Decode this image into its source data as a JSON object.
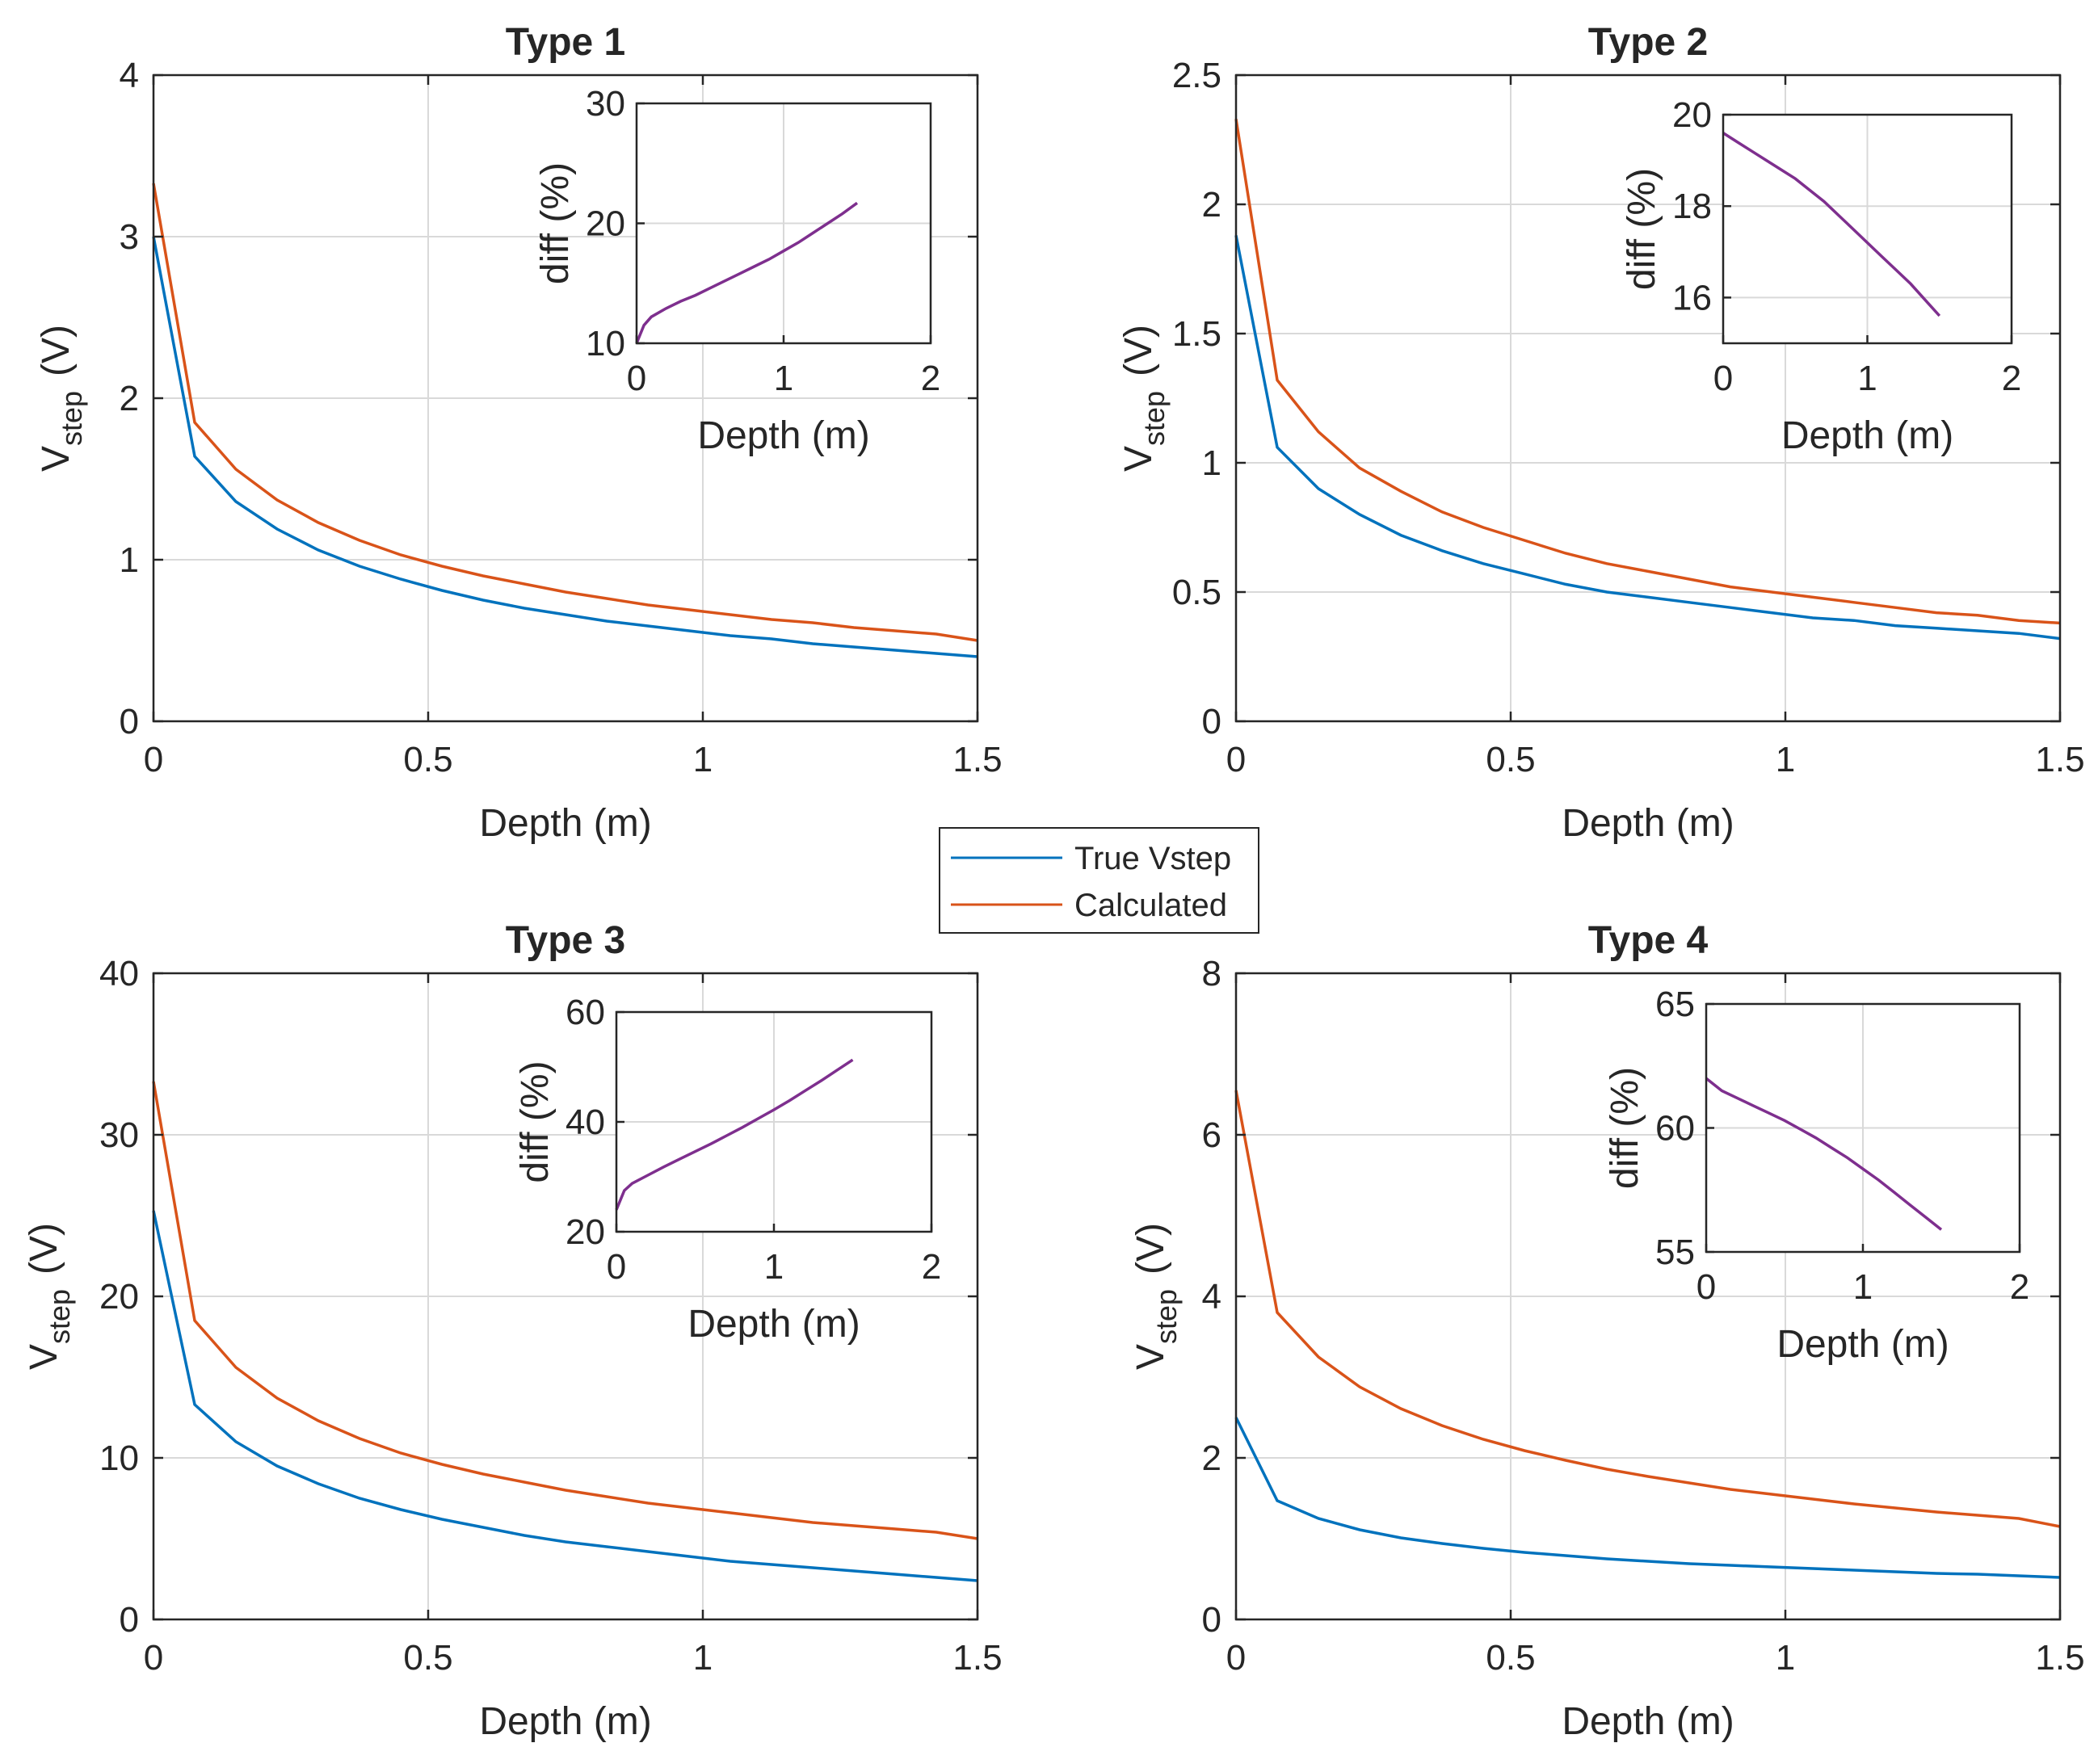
{
  "colors": {
    "true_vstep": "#0072BD",
    "calculated": "#D95319",
    "diff": "#7E2F8E",
    "grid": "#d9d9d9",
    "axis": "#262626"
  },
  "legend": {
    "entries": [
      {
        "label": "True Vstep",
        "color": "#0072BD"
      },
      {
        "label": "Calculated",
        "color": "#D95319"
      }
    ]
  },
  "chart_data": [
    {
      "type": "line",
      "title": "Type 1",
      "xlabel": "Depth  (m)",
      "ylabel_main": "V",
      "ylabel_sub": "step",
      "ylabel_unit": "(V)",
      "xlim": [
        0,
        1.5
      ],
      "ylim": [
        0,
        4
      ],
      "xticks": [
        0,
        0.5,
        1,
        1.5
      ],
      "xtick_labels": [
        "0",
        "0.5",
        "1",
        "1.5"
      ],
      "yticks": [
        0,
        1,
        2,
        3,
        4
      ],
      "ytick_labels": [
        "0",
        "1",
        "2",
        "3",
        "4"
      ],
      "grid": true,
      "x": [
        0,
        0.075,
        0.15,
        0.225,
        0.3,
        0.375,
        0.45,
        0.525,
        0.6,
        0.675,
        0.75,
        0.825,
        0.9,
        0.975,
        1.05,
        1.125,
        1.2,
        1.275,
        1.35,
        1.425,
        1.5
      ],
      "series": [
        {
          "name": "True Vstep",
          "values": [
            3.0,
            1.64,
            1.36,
            1.19,
            1.06,
            0.96,
            0.88,
            0.81,
            0.75,
            0.7,
            0.66,
            0.62,
            0.59,
            0.56,
            0.53,
            0.51,
            0.48,
            0.46,
            0.44,
            0.42,
            0.4
          ]
        },
        {
          "name": "Calculated",
          "values": [
            3.33,
            1.85,
            1.56,
            1.37,
            1.23,
            1.12,
            1.03,
            0.96,
            0.9,
            0.85,
            0.8,
            0.76,
            0.72,
            0.69,
            0.66,
            0.63,
            0.61,
            0.58,
            0.56,
            0.54,
            0.5
          ]
        }
      ],
      "inset": {
        "ylabel": "diff (%)",
        "xlabel": "Depth  (m)",
        "xlim": [
          0,
          2
        ],
        "ylim": [
          10,
          30
        ],
        "xticks": [
          0,
          1,
          2
        ],
        "xtick_labels": [
          "0",
          "1",
          "2"
        ],
        "yticks": [
          10,
          20,
          30
        ],
        "ytick_labels": [
          "10",
          "20",
          "30"
        ],
        "x": [
          0,
          0.05,
          0.1,
          0.2,
          0.3,
          0.4,
          0.5,
          0.6,
          0.7,
          0.8,
          0.9,
          1.0,
          1.1,
          1.2,
          1.3,
          1.4,
          1.5
        ],
        "values": [
          10.0,
          11.5,
          12.2,
          12.9,
          13.5,
          14.0,
          14.6,
          15.2,
          15.8,
          16.4,
          17.0,
          17.7,
          18.4,
          19.2,
          20.0,
          20.8,
          21.7
        ]
      }
    },
    {
      "type": "line",
      "title": "Type 2",
      "xlabel": "Depth  (m)",
      "ylabel_main": "V",
      "ylabel_sub": "step",
      "ylabel_unit": "(V)",
      "xlim": [
        0,
        1.5
      ],
      "ylim": [
        0,
        2.5
      ],
      "xticks": [
        0,
        0.5,
        1,
        1.5
      ],
      "xtick_labels": [
        "0",
        "0.5",
        "1",
        "1.5"
      ],
      "yticks": [
        0,
        0.5,
        1,
        1.5,
        2,
        2.5
      ],
      "ytick_labels": [
        "0",
        "0.5",
        "1",
        "1.5",
        "2",
        "2.5"
      ],
      "grid": true,
      "x": [
        0,
        0.075,
        0.15,
        0.225,
        0.3,
        0.375,
        0.45,
        0.525,
        0.6,
        0.675,
        0.75,
        0.825,
        0.9,
        0.975,
        1.05,
        1.125,
        1.2,
        1.275,
        1.35,
        1.425,
        1.5
      ],
      "series": [
        {
          "name": "True Vstep",
          "values": [
            1.88,
            1.06,
            0.9,
            0.8,
            0.72,
            0.66,
            0.61,
            0.57,
            0.53,
            0.5,
            0.48,
            0.46,
            0.44,
            0.42,
            0.4,
            0.39,
            0.37,
            0.36,
            0.35,
            0.34,
            0.32
          ]
        },
        {
          "name": "Calculated",
          "values": [
            2.33,
            1.32,
            1.12,
            0.98,
            0.89,
            0.81,
            0.75,
            0.7,
            0.65,
            0.61,
            0.58,
            0.55,
            0.52,
            0.5,
            0.48,
            0.46,
            0.44,
            0.42,
            0.41,
            0.39,
            0.38
          ]
        }
      ],
      "inset": {
        "ylabel": "diff (%)",
        "xlabel": "Depth  (m)",
        "xlim": [
          0,
          2
        ],
        "ylim": [
          15,
          20
        ],
        "xticks": [
          0,
          1,
          2
        ],
        "xtick_labels": [
          "0",
          "1",
          "2"
        ],
        "yticks": [
          16,
          18,
          20
        ],
        "ytick_labels": [
          "16",
          "18",
          "20"
        ],
        "x": [
          0,
          0.1,
          0.2,
          0.3,
          0.4,
          0.5,
          0.6,
          0.7,
          0.8,
          0.9,
          1.0,
          1.1,
          1.2,
          1.3,
          1.4,
          1.5
        ],
        "values": [
          19.6,
          19.4,
          19.2,
          19.0,
          18.8,
          18.6,
          18.35,
          18.1,
          17.8,
          17.5,
          17.2,
          16.9,
          16.6,
          16.3,
          15.95,
          15.6
        ]
      }
    },
    {
      "type": "line",
      "title": "Type 3",
      "xlabel": "Depth  (m)",
      "ylabel_main": "V",
      "ylabel_sub": "step",
      "ylabel_unit": "(V)",
      "xlim": [
        0,
        1.5
      ],
      "ylim": [
        0,
        40
      ],
      "xticks": [
        0,
        0.5,
        1,
        1.5
      ],
      "xtick_labels": [
        "0",
        "0.5",
        "1",
        "1.5"
      ],
      "yticks": [
        0,
        10,
        20,
        30,
        40
      ],
      "ytick_labels": [
        "0",
        "10",
        "20",
        "30",
        "40"
      ],
      "grid": true,
      "x": [
        0,
        0.075,
        0.15,
        0.225,
        0.3,
        0.375,
        0.45,
        0.525,
        0.6,
        0.675,
        0.75,
        0.825,
        0.9,
        0.975,
        1.05,
        1.125,
        1.2,
        1.275,
        1.35,
        1.425,
        1.5
      ],
      "series": [
        {
          "name": "True Vstep",
          "values": [
            25.3,
            13.3,
            11.0,
            9.5,
            8.4,
            7.5,
            6.8,
            6.2,
            5.7,
            5.2,
            4.8,
            4.5,
            4.2,
            3.9,
            3.6,
            3.4,
            3.2,
            3.0,
            2.8,
            2.6,
            2.4
          ]
        },
        {
          "name": "Calculated",
          "values": [
            33.3,
            18.5,
            15.6,
            13.7,
            12.3,
            11.2,
            10.3,
            9.6,
            9.0,
            8.5,
            8.0,
            7.6,
            7.2,
            6.9,
            6.6,
            6.3,
            6.0,
            5.8,
            5.6,
            5.4,
            5.0
          ]
        }
      ],
      "inset": {
        "ylabel": "diff (%)",
        "xlabel": "Depth  (m)",
        "xlim": [
          0,
          2
        ],
        "ylim": [
          20,
          60
        ],
        "xticks": [
          0,
          1,
          2
        ],
        "xtick_labels": [
          "0",
          "1",
          "2"
        ],
        "yticks": [
          20,
          40,
          60
        ],
        "ytick_labels": [
          "20",
          "40",
          "60"
        ],
        "x": [
          0,
          0.05,
          0.1,
          0.2,
          0.3,
          0.4,
          0.5,
          0.6,
          0.7,
          0.8,
          0.9,
          1.0,
          1.1,
          1.2,
          1.3,
          1.4,
          1.5
        ],
        "values": [
          24.0,
          27.5,
          28.8,
          30.3,
          31.8,
          33.2,
          34.6,
          36.0,
          37.5,
          39.0,
          40.6,
          42.2,
          43.9,
          45.7,
          47.5,
          49.4,
          51.3
        ]
      }
    },
    {
      "type": "line",
      "title": "Type 4",
      "xlabel": "Depth  (m)",
      "ylabel_main": "V",
      "ylabel_sub": "step",
      "ylabel_unit": "(V)",
      "xlim": [
        0,
        1.5
      ],
      "ylim": [
        0,
        8
      ],
      "xticks": [
        0,
        0.5,
        1,
        1.5
      ],
      "xtick_labels": [
        "0",
        "0.5",
        "1",
        "1.5"
      ],
      "yticks": [
        0,
        2,
        4,
        6,
        8
      ],
      "ytick_labels": [
        "0",
        "2",
        "4",
        "6",
        "8"
      ],
      "grid": true,
      "x": [
        0,
        0.075,
        0.15,
        0.225,
        0.3,
        0.375,
        0.45,
        0.525,
        0.6,
        0.675,
        0.75,
        0.825,
        0.9,
        0.975,
        1.05,
        1.125,
        1.2,
        1.275,
        1.35,
        1.425,
        1.5
      ],
      "series": [
        {
          "name": "True Vstep",
          "values": [
            2.5,
            1.47,
            1.25,
            1.11,
            1.01,
            0.94,
            0.88,
            0.83,
            0.79,
            0.75,
            0.72,
            0.69,
            0.67,
            0.65,
            0.63,
            0.61,
            0.59,
            0.57,
            0.56,
            0.54,
            0.52
          ]
        },
        {
          "name": "Calculated",
          "values": [
            6.55,
            3.8,
            3.25,
            2.88,
            2.61,
            2.4,
            2.23,
            2.09,
            1.97,
            1.86,
            1.77,
            1.69,
            1.61,
            1.55,
            1.49,
            1.43,
            1.38,
            1.33,
            1.29,
            1.25,
            1.15
          ]
        }
      ],
      "inset": {
        "ylabel": "diff (%)",
        "xlabel": "Depth  (m)",
        "xlim": [
          0,
          2
        ],
        "ylim": [
          55,
          65
        ],
        "xticks": [
          0,
          1,
          2
        ],
        "xtick_labels": [
          "0",
          "1",
          "2"
        ],
        "yticks": [
          55,
          60,
          65
        ],
        "ytick_labels": [
          "55",
          "60",
          "65"
        ],
        "x": [
          0,
          0.1,
          0.2,
          0.3,
          0.4,
          0.5,
          0.6,
          0.7,
          0.8,
          0.9,
          1.0,
          1.1,
          1.2,
          1.3,
          1.4,
          1.5
        ],
        "values": [
          62.0,
          61.5,
          61.2,
          60.9,
          60.6,
          60.3,
          59.95,
          59.6,
          59.2,
          58.8,
          58.35,
          57.9,
          57.4,
          56.9,
          56.4,
          55.9
        ]
      }
    }
  ]
}
